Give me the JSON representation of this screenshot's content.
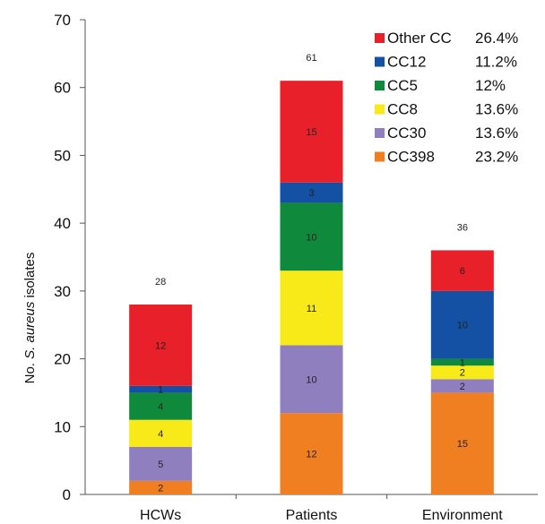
{
  "chart_data": {
    "type": "bar",
    "stacked": true,
    "categories": [
      "HCWs",
      "Patients",
      "Environment"
    ],
    "series": [
      {
        "name": "CC398",
        "color": "#f07f22",
        "values": [
          2,
          12,
          15
        ]
      },
      {
        "name": "CC30",
        "color": "#8f7fbf",
        "values": [
          5,
          10,
          2
        ]
      },
      {
        "name": "CC8",
        "color": "#f7ea18",
        "values": [
          4,
          11,
          2
        ]
      },
      {
        "name": "CC5",
        "color": "#0f8a3c",
        "values": [
          4,
          10,
          1
        ]
      },
      {
        "name": "CC12",
        "color": "#1450a3",
        "values": [
          1,
          3,
          10
        ]
      },
      {
        "name": "Other CC",
        "color": "#e8202a",
        "values": [
          12,
          15,
          6
        ]
      }
    ],
    "totals": [
      28,
      61,
      36
    ],
    "ylabel_parts": [
      "No. ",
      "S. aureus",
      " isolates"
    ],
    "ylim": [
      0,
      70
    ],
    "yticks": [
      0,
      10,
      20,
      30,
      40,
      50,
      60,
      70
    ],
    "grid": false,
    "legend": {
      "placement": "top-right",
      "entries": [
        {
          "name": "Other CC",
          "percent": "26.4%",
          "color": "#e8202a"
        },
        {
          "name": "CC12",
          "percent": "11.2%",
          "color": "#1450a3"
        },
        {
          "name": "CC5",
          "percent": "12%",
          "color": "#0f8a3c"
        },
        {
          "name": "CC8",
          "percent": "13.6%",
          "color": "#f7ea18"
        },
        {
          "name": "CC30",
          "percent": "13.6%",
          "color": "#8f7fbf"
        },
        {
          "name": "CC398",
          "percent": "23.2%",
          "color": "#f07f22"
        }
      ]
    }
  }
}
